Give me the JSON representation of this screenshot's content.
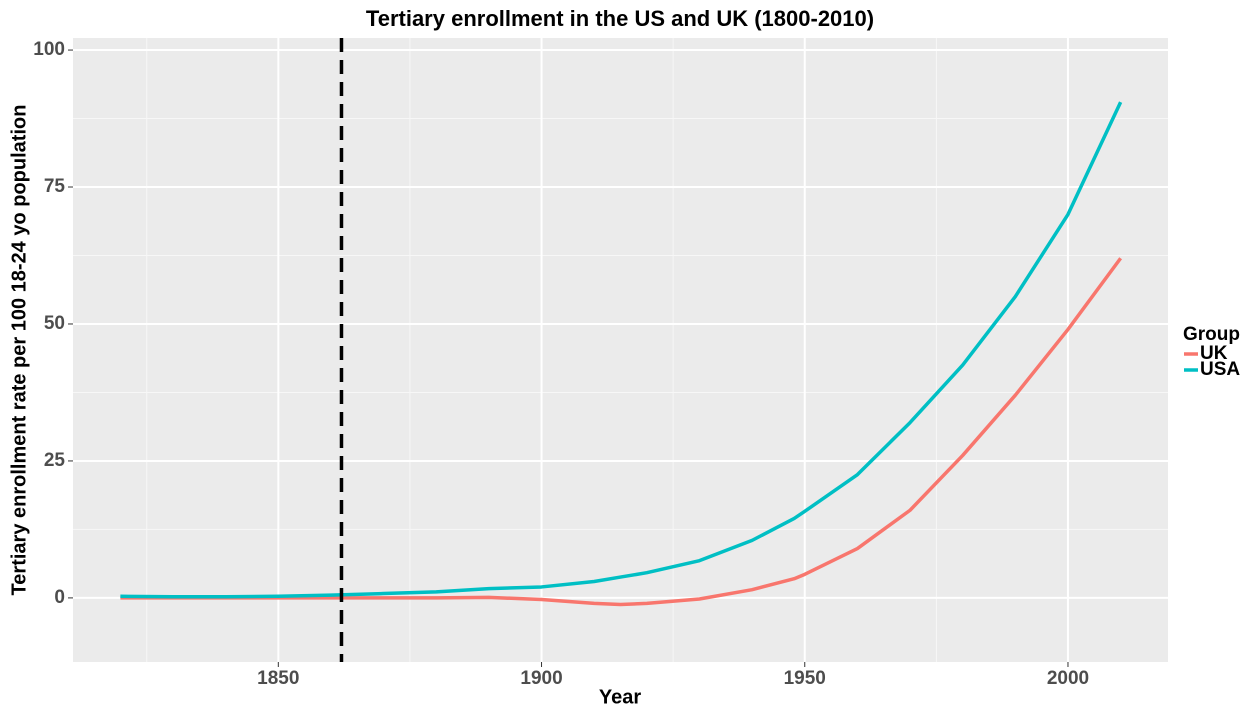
{
  "chart_data": {
    "type": "line",
    "title": "Tertiary enrollment in the US and UK (1800-2010)",
    "x_label": "Year",
    "y_label": "Tertiary enrollment rate per 100 18-24 yo population",
    "legend_title": "Group",
    "legend_position": "right",
    "grid": true,
    "vline": 1862,
    "x": [
      1820,
      1830,
      1840,
      1850,
      1860,
      1870,
      1880,
      1890,
      1900,
      1910,
      1915,
      1920,
      1930,
      1940,
      1948,
      1950,
      1960,
      1970,
      1980,
      1990,
      2000,
      2010
    ],
    "series": [
      {
        "name": "UK",
        "color": "#f8766d",
        "values": [
          0,
          0,
          0,
          0,
          0,
          0,
          0,
          0.1,
          -0.3,
          -1.0,
          -1.2,
          -1.0,
          -0.2,
          1.5,
          3.5,
          4.3,
          9.0,
          16.0,
          26.0,
          37.0,
          49.0,
          62.0
        ]
      },
      {
        "name": "USA",
        "color": "#00bfc4",
        "values": [
          0.3,
          0.2,
          0.2,
          0.3,
          0.5,
          0.8,
          1.1,
          1.7,
          2.0,
          3.0,
          3.8,
          4.6,
          6.8,
          10.5,
          14.5,
          15.8,
          22.5,
          32.0,
          42.5,
          55.0,
          70.0,
          90.5
        ]
      }
    ],
    "xlim": [
      1811,
      2019
    ],
    "ylim": [
      -11.7,
      102.2
    ],
    "xticks": [
      1850,
      1900,
      1950,
      2000
    ],
    "yticks": [
      0,
      25,
      50,
      75,
      100
    ]
  }
}
